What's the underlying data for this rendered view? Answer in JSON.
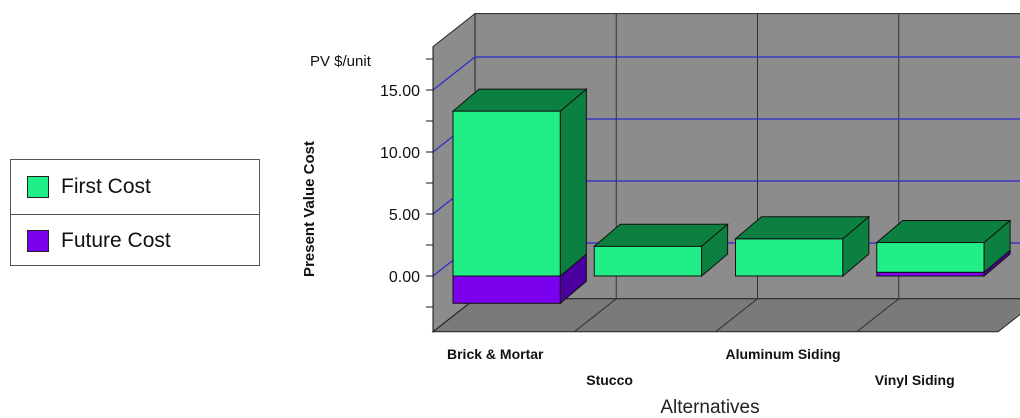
{
  "chart_data": {
    "type": "bar",
    "stacked": true,
    "three_d": true,
    "units_label": "PV $/unit",
    "ylabel": "Present Value Cost",
    "xlabel": "Alternatives",
    "categories": [
      "Brick & Mortar",
      "Stucco",
      "Aluminum Siding",
      "Vinyl Siding"
    ],
    "series": [
      {
        "name": "First Cost",
        "values": [
          13.3,
          2.4,
          3.0,
          2.4
        ],
        "color": "#22ee88"
      },
      {
        "name": "Future Cost",
        "values": [
          -2.2,
          0.0,
          0.0,
          0.3
        ],
        "color": "#7a00ee"
      }
    ],
    "yticks": [
      "15.00",
      "10.00",
      "5.00",
      "0.00"
    ],
    "ytick_values": [
      15,
      10,
      5,
      0
    ],
    "ylim": [
      -4.5,
      18.5
    ],
    "grid": true,
    "legend_position": "left",
    "colors": {
      "wall": "#8c8c8c",
      "floor": "#7a7a7a",
      "gridline": "#2a2acc",
      "first_side": "#0c8040",
      "future_side": "#4a00a0"
    }
  }
}
